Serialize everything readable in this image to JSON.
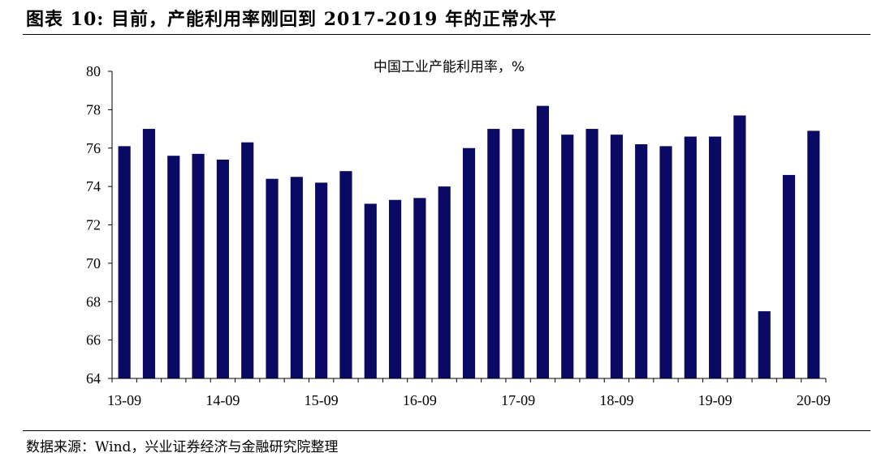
{
  "figure": {
    "title": "图表 10: 目前，产能利用率刚回到 2017-2019 年的正常水平",
    "source": "数据来源：Wind，兴业证券经济与金融研究院整理"
  },
  "chart_data": {
    "type": "bar",
    "title": "中国工业产能利用率，%",
    "xlabel": "",
    "ylabel": "",
    "ylim": [
      64,
      80
    ],
    "yticks": [
      64,
      66,
      68,
      70,
      72,
      74,
      76,
      78,
      80
    ],
    "x_tick_labels": [
      "13-09",
      "14-09",
      "15-09",
      "16-09",
      "17-09",
      "18-09",
      "19-09",
      "20-09"
    ],
    "grid": false,
    "legend": "none",
    "bar_color": "#0a0a64",
    "categories": [
      "13-09",
      "13-12",
      "14-03",
      "14-06",
      "14-09",
      "14-12",
      "15-03",
      "15-06",
      "15-09",
      "15-12",
      "16-03",
      "16-06",
      "16-09",
      "16-12",
      "17-03",
      "17-06",
      "17-09",
      "17-12",
      "18-03",
      "18-06",
      "18-09",
      "18-12",
      "19-03",
      "19-06",
      "19-09",
      "19-12",
      "20-03",
      "20-06",
      "20-09"
    ],
    "values": [
      76.1,
      77.0,
      75.6,
      75.7,
      75.4,
      76.3,
      74.4,
      74.5,
      74.2,
      74.8,
      73.1,
      73.3,
      73.4,
      74.0,
      76.0,
      77.0,
      77.0,
      78.2,
      76.7,
      77.0,
      76.7,
      76.2,
      76.1,
      76.6,
      76.6,
      77.7,
      67.5,
      74.6,
      76.9
    ]
  }
}
